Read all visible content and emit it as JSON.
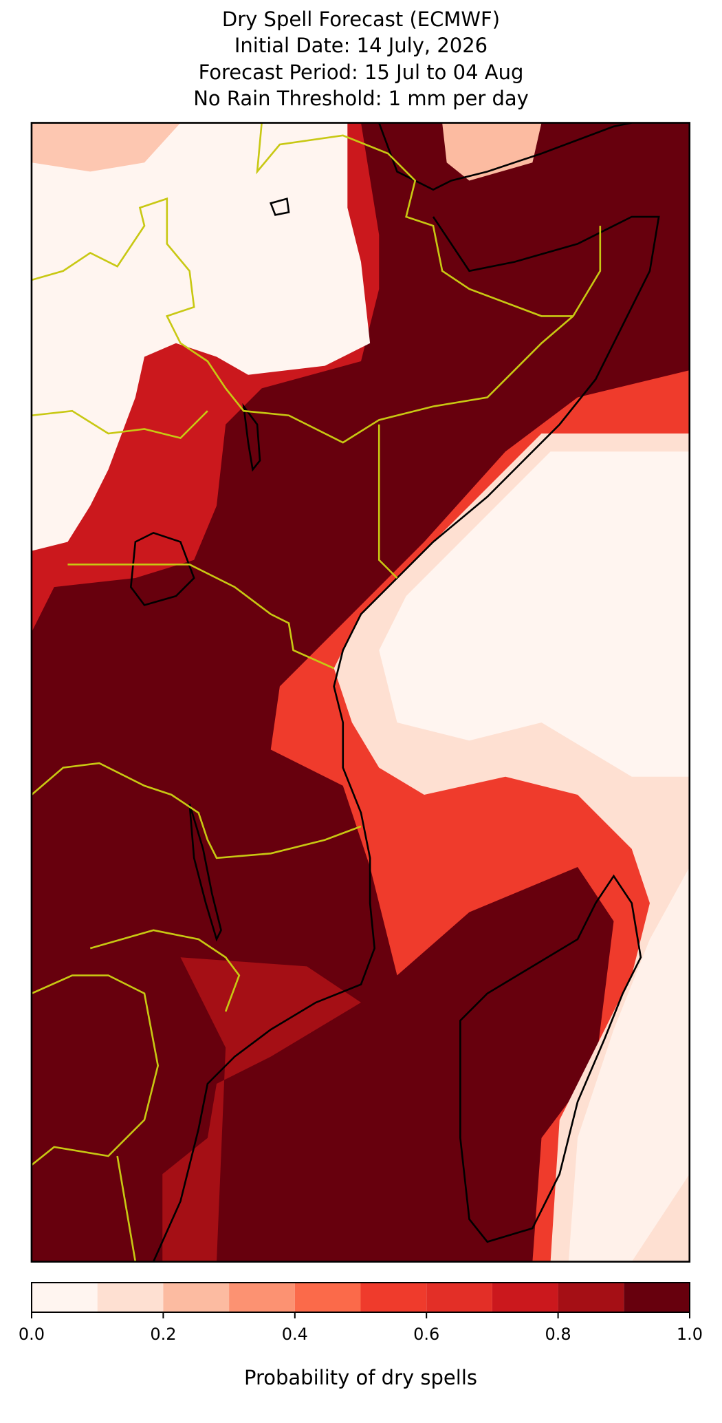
{
  "title": [
    "Dry Spell Forecast (ECMWF)",
    "Initial Date: 14 July, 2026",
    "Forecast Period: 15 Jul to 04 Aug",
    "No Rain Threshold: 1 mm per day"
  ],
  "colorbar": {
    "label": "Probability of dry spells",
    "bounds": [
      0,
      0.1,
      0.2,
      0.3,
      0.4,
      0.5,
      0.6,
      0.7,
      0.8,
      0.9,
      1
    ],
    "colors": [
      "#fff5f0",
      "#fee0d2",
      "#fcbba1",
      "#fc9272",
      "#fb6a4a",
      "#ef3b2c",
      "#e32f27",
      "#cb181d",
      "#a50f15",
      "#67000d"
    ],
    "ticks": [
      {
        "value": 0,
        "label": "0.0"
      },
      0.2,
      0.4,
      0.6,
      0.8,
      {
        "value": 1,
        "label": "1.0"
      }
    ]
  }
}
